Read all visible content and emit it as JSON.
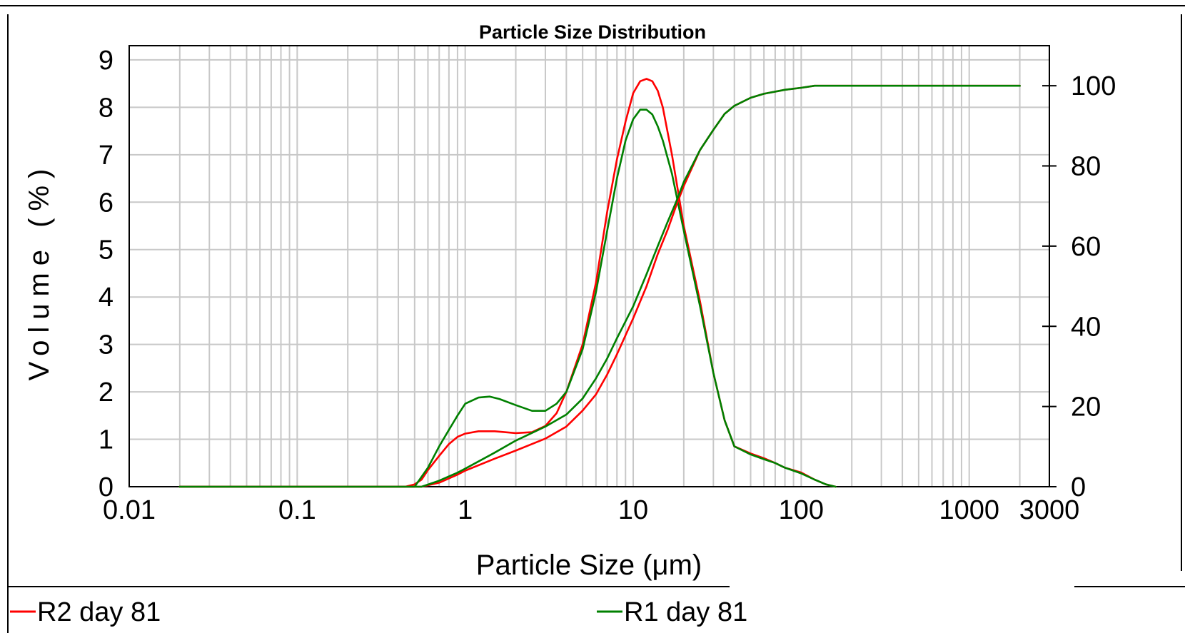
{
  "chart_data": {
    "type": "line",
    "title": "Particle Size Distribution",
    "xlabel": "Particle Size (μm)",
    "ylabel": "Volume (%)",
    "x_scale": "log",
    "xlim": [
      0.01,
      3000
    ],
    "ylim": [
      0,
      9.3
    ],
    "y2lim": [
      0,
      110
    ],
    "x_ticks": [
      "0.01",
      "0.1",
      "1",
      "10",
      "100",
      "1000",
      "3000"
    ],
    "y_ticks": [
      "0",
      "1",
      "2",
      "3",
      "4",
      "5",
      "6",
      "7",
      "8",
      "9"
    ],
    "y2_ticks": [
      "0",
      "20",
      "40",
      "60",
      "80",
      "100"
    ],
    "grid": true,
    "legend_position": "bottom",
    "series": [
      {
        "name": "R2 day 81",
        "color": "#ff0000",
        "axis": "left",
        "kind": "frequency",
        "x": [
          0.02,
          0.44,
          0.5,
          0.55,
          0.6,
          0.7,
          0.8,
          0.9,
          1.0,
          1.2,
          1.5,
          2.0,
          2.5,
          3.0,
          3.5,
          4.0,
          5.0,
          6.0,
          7.0,
          8.0,
          9.0,
          10.0,
          11.0,
          12.0,
          13.0,
          14.0,
          15.0,
          17.0,
          20.0,
          25.0,
          30.0,
          35.0,
          40.0,
          50.0,
          60.0,
          70.0,
          80.0,
          100.0,
          120.0,
          140.0,
          160.0
        ],
        "y": [
          0,
          0,
          0.05,
          0.15,
          0.35,
          0.65,
          0.9,
          1.05,
          1.12,
          1.17,
          1.17,
          1.13,
          1.15,
          1.28,
          1.55,
          2.0,
          3.0,
          4.3,
          5.8,
          6.9,
          7.7,
          8.3,
          8.55,
          8.6,
          8.55,
          8.35,
          8.0,
          7.0,
          5.5,
          3.9,
          2.4,
          1.4,
          0.85,
          0.7,
          0.6,
          0.5,
          0.4,
          0.3,
          0.15,
          0.05,
          0
        ]
      },
      {
        "name": "R1 day 81",
        "color": "#008000",
        "axis": "left",
        "kind": "frequency",
        "x": [
          0.02,
          0.5,
          0.6,
          0.7,
          0.8,
          0.9,
          1.0,
          1.2,
          1.4,
          1.6,
          2.0,
          2.5,
          3.0,
          3.5,
          4.0,
          5.0,
          6.0,
          7.0,
          8.0,
          9.0,
          10.0,
          11.0,
          12.0,
          13.0,
          14.0,
          15.0,
          17.0,
          20.0,
          25.0,
          30.0,
          35.0,
          40.0,
          50.0,
          60.0,
          70.0,
          80.0,
          100.0,
          120.0,
          140.0,
          160.0
        ],
        "y": [
          0,
          0,
          0.4,
          0.85,
          1.2,
          1.5,
          1.75,
          1.88,
          1.9,
          1.85,
          1.72,
          1.6,
          1.6,
          1.75,
          2.0,
          2.9,
          4.1,
          5.4,
          6.5,
          7.3,
          7.75,
          7.95,
          7.95,
          7.85,
          7.6,
          7.3,
          6.6,
          5.4,
          3.8,
          2.4,
          1.4,
          0.85,
          0.68,
          0.58,
          0.5,
          0.4,
          0.28,
          0.15,
          0.05,
          0
        ]
      },
      {
        "name": "R2 day 81",
        "color": "#ff0000",
        "axis": "right",
        "kind": "cumulative",
        "x": [
          0.02,
          0.55,
          0.7,
          0.9,
          1.0,
          1.5,
          2.0,
          3.0,
          4.0,
          5.0,
          6.0,
          7.0,
          8.0,
          10.0,
          12.0,
          14.0,
          16.0,
          18.0,
          20.0,
          25.0,
          30.0,
          35.0,
          40.0,
          50.0,
          60.0,
          80.0,
          100.0,
          120.0,
          2000.0
        ],
        "y": [
          0,
          0,
          1,
          3,
          4,
          7,
          9,
          12,
          15,
          19,
          23,
          28,
          33,
          42,
          50,
          58,
          64,
          70,
          75,
          84,
          89,
          93,
          95,
          97,
          98,
          99,
          99.5,
          100,
          100
        ]
      },
      {
        "name": "R1 day 81",
        "color": "#008000",
        "axis": "right",
        "kind": "cumulative",
        "x": [
          0.02,
          0.55,
          0.7,
          0.9,
          1.0,
          1.5,
          2.0,
          3.0,
          4.0,
          5.0,
          6.0,
          7.0,
          8.0,
          10.0,
          12.0,
          14.0,
          16.0,
          18.0,
          20.0,
          25.0,
          30.0,
          35.0,
          40.0,
          50.0,
          60.0,
          80.0,
          100.0,
          120.0,
          2000.0
        ],
        "y": [
          0,
          0,
          1.5,
          3.5,
          4.5,
          8.5,
          11.5,
          15,
          18,
          22,
          27,
          32,
          37,
          45,
          53,
          60,
          66,
          71,
          76,
          84,
          89,
          93,
          95,
          97,
          98,
          99,
          99.5,
          100,
          100
        ]
      }
    ]
  }
}
